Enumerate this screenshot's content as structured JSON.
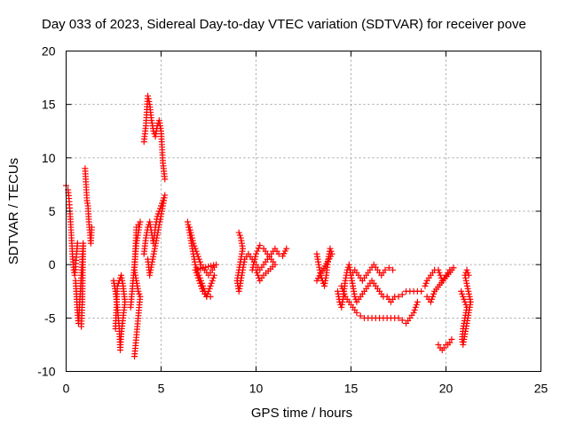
{
  "chart_data": {
    "type": "scatter",
    "title": "Day 033 of 2023, Sidereal Day-to-day VTEC variation (SDTVAR) for receiver pove",
    "xlabel": "GPS time / hours",
    "ylabel": "SDTVAR / TECUs",
    "xlim": [
      0,
      25
    ],
    "ylim": [
      -10,
      20
    ],
    "xticks": [
      0,
      5,
      10,
      15,
      20,
      25
    ],
    "yticks": [
      -10,
      -5,
      0,
      5,
      10,
      15,
      20
    ],
    "xtick_labels": [
      "0",
      "5",
      "10",
      "15",
      "20",
      "25"
    ],
    "ytick_labels": [
      "-10",
      "-5",
      "0",
      "5",
      "10",
      "15",
      "20"
    ],
    "grid": true,
    "marker": "+",
    "marker_color": "#ff0000",
    "series": [
      {
        "name": "SDTVAR",
        "segments": [
          [
            [
              0.0,
              7.4
            ],
            [
              0.1,
              7.0
            ],
            [
              0.15,
              6.2
            ],
            [
              0.2,
              5.0
            ],
            [
              0.25,
              3.5
            ],
            [
              0.3,
              2.0
            ],
            [
              0.35,
              0.5
            ],
            [
              0.4,
              -0.5
            ],
            [
              0.45,
              -1.0
            ],
            [
              0.5,
              -0.2
            ],
            [
              0.55,
              1.0
            ],
            [
              0.6,
              2.0
            ]
          ],
          [
            [
              0.5,
              -1.5
            ],
            [
              0.55,
              -3.0
            ],
            [
              0.6,
              -4.5
            ],
            [
              0.65,
              -5.5
            ],
            [
              0.7,
              -4.0
            ],
            [
              0.75,
              -2.5
            ],
            [
              0.8,
              -1.0
            ],
            [
              0.85,
              0.5
            ],
            [
              0.9,
              2.0
            ],
            [
              0.85,
              -3.5
            ],
            [
              0.8,
              -5.8
            ]
          ],
          [
            [
              1.0,
              9.0
            ],
            [
              1.05,
              7.5
            ],
            [
              1.1,
              6.0
            ],
            [
              1.15,
              5.5
            ],
            [
              1.2,
              4.0
            ],
            [
              1.25,
              3.0
            ],
            [
              1.3,
              2.0
            ],
            [
              1.35,
              3.5
            ]
          ],
          [
            [
              2.5,
              -1.5
            ],
            [
              2.6,
              -2.5
            ],
            [
              2.7,
              -4.0
            ],
            [
              2.8,
              -6.0
            ],
            [
              2.85,
              -8.0
            ],
            [
              2.9,
              -6.5
            ],
            [
              3.0,
              -5.0
            ],
            [
              3.1,
              -3.5
            ],
            [
              3.0,
              -2.0
            ],
            [
              2.9,
              -1.0
            ],
            [
              2.7,
              -2.0
            ],
            [
              2.6,
              -6.0
            ]
          ],
          [
            [
              3.4,
              -4.0
            ],
            [
              3.5,
              -2.0
            ],
            [
              3.6,
              0.0
            ],
            [
              3.7,
              2.0
            ],
            [
              3.8,
              3.0
            ],
            [
              3.9,
              4.0
            ],
            [
              3.7,
              3.5
            ],
            [
              3.6,
              -0.5
            ],
            [
              3.7,
              -1.5
            ],
            [
              3.8,
              -2.5
            ],
            [
              3.9,
              -3.0
            ],
            [
              3.6,
              -8.6
            ]
          ],
          [
            [
              4.1,
              1.0
            ],
            [
              4.2,
              2.5
            ],
            [
              4.3,
              3.5
            ],
            [
              4.4,
              4.0
            ],
            [
              4.5,
              3.0
            ],
            [
              4.6,
              2.0
            ],
            [
              4.7,
              3.5
            ],
            [
              4.8,
              4.5
            ],
            [
              4.9,
              5.0
            ],
            [
              5.0,
              5.5
            ],
            [
              5.1,
              6.0
            ],
            [
              5.2,
              6.5
            ],
            [
              4.4,
              -1.0
            ],
            [
              4.3,
              0.5
            ]
          ],
          [
            [
              4.1,
              11.5
            ],
            [
              4.2,
              13.0
            ],
            [
              4.3,
              15.8
            ],
            [
              4.4,
              15.0
            ],
            [
              4.5,
              13.5
            ],
            [
              4.6,
              12.5
            ],
            [
              4.7,
              12.0
            ],
            [
              4.8,
              13.0
            ],
            [
              4.9,
              13.5
            ],
            [
              5.0,
              12.5
            ],
            [
              5.05,
              11.0
            ],
            [
              5.1,
              9.5
            ],
            [
              5.2,
              8.0
            ]
          ],
          [
            [
              6.4,
              4.0
            ],
            [
              6.5,
              3.0
            ],
            [
              6.6,
              2.0
            ],
            [
              6.7,
              1.0
            ],
            [
              6.8,
              0.0
            ],
            [
              6.9,
              -0.5
            ],
            [
              7.0,
              -1.0
            ],
            [
              7.1,
              -1.5
            ],
            [
              7.2,
              -2.0
            ],
            [
              7.3,
              -2.5
            ],
            [
              7.4,
              -3.0
            ],
            [
              7.5,
              -2.5
            ],
            [
              7.6,
              -2.0
            ],
            [
              7.7,
              -1.5
            ],
            [
              7.8,
              -1.0
            ]
          ],
          [
            [
              6.5,
              3.5
            ],
            [
              6.7,
              2.0
            ],
            [
              6.9,
              1.0
            ],
            [
              7.1,
              0.0
            ],
            [
              7.3,
              -0.5
            ],
            [
              7.5,
              -1.0
            ],
            [
              7.7,
              -0.5
            ],
            [
              7.9,
              0.0
            ],
            [
              6.8,
              -0.5
            ],
            [
              7.0,
              -1.5
            ],
            [
              7.2,
              -2.5
            ],
            [
              7.4,
              -3.0
            ],
            [
              7.6,
              -3.0
            ]
          ],
          [
            [
              9.1,
              3.0
            ],
            [
              9.2,
              2.5
            ],
            [
              9.3,
              1.5
            ],
            [
              9.2,
              0.5
            ],
            [
              9.1,
              -0.5
            ],
            [
              9.0,
              -1.5
            ],
            [
              9.1,
              -2.5
            ],
            [
              9.2,
              -1.5
            ],
            [
              9.3,
              -0.5
            ],
            [
              9.4,
              0.5
            ],
            [
              9.6,
              1.0
            ],
            [
              9.8,
              0.5
            ],
            [
              10.0,
              0.0
            ],
            [
              10.2,
              -0.5
            ],
            [
              10.4,
              0.0
            ],
            [
              10.6,
              0.5
            ],
            [
              10.8,
              1.0
            ],
            [
              11.0,
              1.5
            ],
            [
              11.2,
              1.0
            ],
            [
              11.4,
              0.8
            ],
            [
              11.6,
              1.5
            ]
          ],
          [
            [
              9.8,
              -0.5
            ],
            [
              10.0,
              1.0
            ],
            [
              10.2,
              1.8
            ],
            [
              10.4,
              1.5
            ],
            [
              10.6,
              1.0
            ],
            [
              10.8,
              0.5
            ],
            [
              11.0,
              0.0
            ],
            [
              10.4,
              -1.0
            ],
            [
              10.2,
              -1.5
            ],
            [
              10.0,
              -0.5
            ]
          ],
          [
            [
              13.2,
              1.0
            ],
            [
              13.3,
              0.0
            ],
            [
              13.4,
              -1.0
            ],
            [
              13.5,
              -1.5
            ],
            [
              13.6,
              -2.0
            ],
            [
              13.7,
              -1.0
            ],
            [
              13.8,
              0.5
            ],
            [
              13.9,
              1.5
            ],
            [
              14.0,
              1.0
            ],
            [
              13.2,
              -1.5
            ]
          ],
          [
            [
              14.3,
              -2.5
            ],
            [
              14.4,
              -3.5
            ],
            [
              14.5,
              -4.0
            ],
            [
              14.6,
              -3.0
            ],
            [
              14.7,
              -1.5
            ],
            [
              14.8,
              -0.5
            ],
            [
              14.9,
              0.0
            ],
            [
              15.0,
              -1.0
            ],
            [
              15.1,
              -2.0
            ],
            [
              15.2,
              -3.0
            ],
            [
              15.3,
              -3.5
            ],
            [
              15.5,
              -3.0
            ],
            [
              15.7,
              -2.5
            ],
            [
              15.9,
              -2.0
            ],
            [
              16.1,
              -1.5
            ],
            [
              16.3,
              -2.0
            ],
            [
              16.5,
              -2.5
            ],
            [
              16.7,
              -3.0
            ],
            [
              16.9,
              -3.0
            ],
            [
              17.1,
              -3.5
            ],
            [
              17.3,
              -3.0
            ],
            [
              17.5,
              -3.0
            ],
            [
              17.7,
              -2.8
            ],
            [
              17.9,
              -2.5
            ],
            [
              18.1,
              -2.5
            ],
            [
              18.3,
              -2.5
            ],
            [
              18.5,
              -2.5
            ],
            [
              18.7,
              -2.5
            ]
          ],
          [
            [
              14.5,
              -2.0
            ],
            [
              14.7,
              -3.0
            ],
            [
              14.9,
              -3.5
            ],
            [
              15.1,
              -4.0
            ],
            [
              15.3,
              -4.5
            ],
            [
              15.5,
              -4.8
            ],
            [
              15.7,
              -5.0
            ],
            [
              15.9,
              -5.0
            ],
            [
              16.1,
              -5.0
            ],
            [
              16.3,
              -5.0
            ],
            [
              16.5,
              -5.0
            ],
            [
              16.7,
              -5.0
            ],
            [
              16.9,
              -5.0
            ],
            [
              17.1,
              -5.0
            ],
            [
              17.3,
              -5.0
            ],
            [
              17.5,
              -5.0
            ],
            [
              17.7,
              -5.2
            ],
            [
              17.9,
              -5.5
            ],
            [
              18.1,
              -5.0
            ],
            [
              18.3,
              -4.5
            ],
            [
              18.5,
              -3.5
            ]
          ],
          [
            [
              15.0,
              -1.0
            ],
            [
              15.2,
              -0.5
            ],
            [
              15.4,
              -1.0
            ],
            [
              15.6,
              -1.5
            ],
            [
              15.8,
              -1.0
            ],
            [
              16.0,
              -0.5
            ],
            [
              16.2,
              0.0
            ],
            [
              16.4,
              -0.5
            ],
            [
              16.6,
              -1.0
            ],
            [
              16.8,
              -0.5
            ],
            [
              17.0,
              -0.3
            ],
            [
              17.2,
              -0.5
            ]
          ],
          [
            [
              18.9,
              -2.0
            ],
            [
              19.0,
              -1.5
            ],
            [
              19.2,
              -1.0
            ],
            [
              19.4,
              -0.5
            ],
            [
              19.6,
              -0.5
            ],
            [
              19.8,
              -1.5
            ],
            [
              20.0,
              -1.0
            ],
            [
              20.2,
              -0.5
            ],
            [
              20.4,
              -0.3
            ],
            [
              19.4,
              -2.5
            ],
            [
              19.2,
              -3.5
            ],
            [
              19.0,
              -3.0
            ]
          ],
          [
            [
              19.6,
              -7.5
            ],
            [
              19.7,
              -7.8
            ],
            [
              19.8,
              -8.0
            ],
            [
              19.9,
              -7.8
            ],
            [
              20.0,
              -7.5
            ],
            [
              20.1,
              -7.5
            ],
            [
              20.2,
              -7.3
            ],
            [
              20.3,
              -7.0
            ]
          ],
          [
            [
              20.8,
              -2.5
            ],
            [
              20.9,
              -3.0
            ],
            [
              21.0,
              -3.5
            ],
            [
              21.1,
              -4.0
            ],
            [
              21.0,
              -5.0
            ],
            [
              20.9,
              -6.0
            ],
            [
              20.85,
              -7.0
            ],
            [
              20.9,
              -7.5
            ],
            [
              21.0,
              -6.5
            ],
            [
              21.1,
              -5.5
            ],
            [
              21.2,
              -4.5
            ],
            [
              21.3,
              -3.5
            ],
            [
              21.0,
              -1.0
            ],
            [
              21.1,
              -0.5
            ],
            [
              21.2,
              -1.0
            ]
          ]
        ]
      }
    ]
  }
}
